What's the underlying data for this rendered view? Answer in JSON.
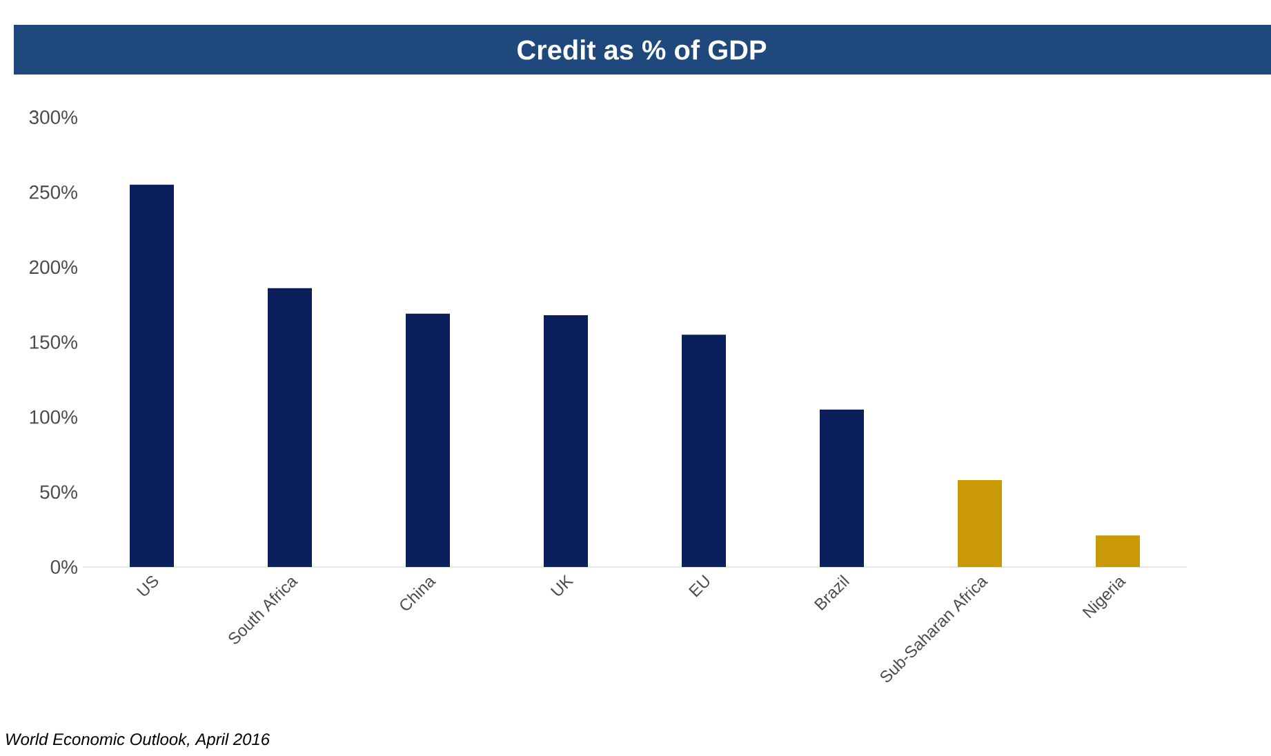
{
  "chart_data": {
    "type": "bar",
    "title": "Credit as % of GDP",
    "categories": [
      "US",
      "South Africa",
      "China",
      "UK",
      "EU",
      "Brazil",
      "Sub-Saharan Africa",
      "Nigeria"
    ],
    "values": [
      255,
      186,
      169,
      168,
      155,
      105,
      58,
      21
    ],
    "colors": [
      "#0a1f5c",
      "#0a1f5c",
      "#0a1f5c",
      "#0a1f5c",
      "#0a1f5c",
      "#0a1f5c",
      "#c99a06",
      "#c99a06"
    ],
    "ylim": [
      0,
      300
    ],
    "yticks": [
      {
        "value": 0,
        "label": "0%"
      },
      {
        "value": 50,
        "label": "50%"
      },
      {
        "value": 100,
        "label": "100%"
      },
      {
        "value": 150,
        "label": "150%"
      },
      {
        "value": 200,
        "label": "200%"
      },
      {
        "value": 250,
        "label": "250%"
      },
      {
        "value": 300,
        "label": "300%"
      }
    ],
    "annotations": [
      "World Economic Outlook, April 2016"
    ]
  }
}
